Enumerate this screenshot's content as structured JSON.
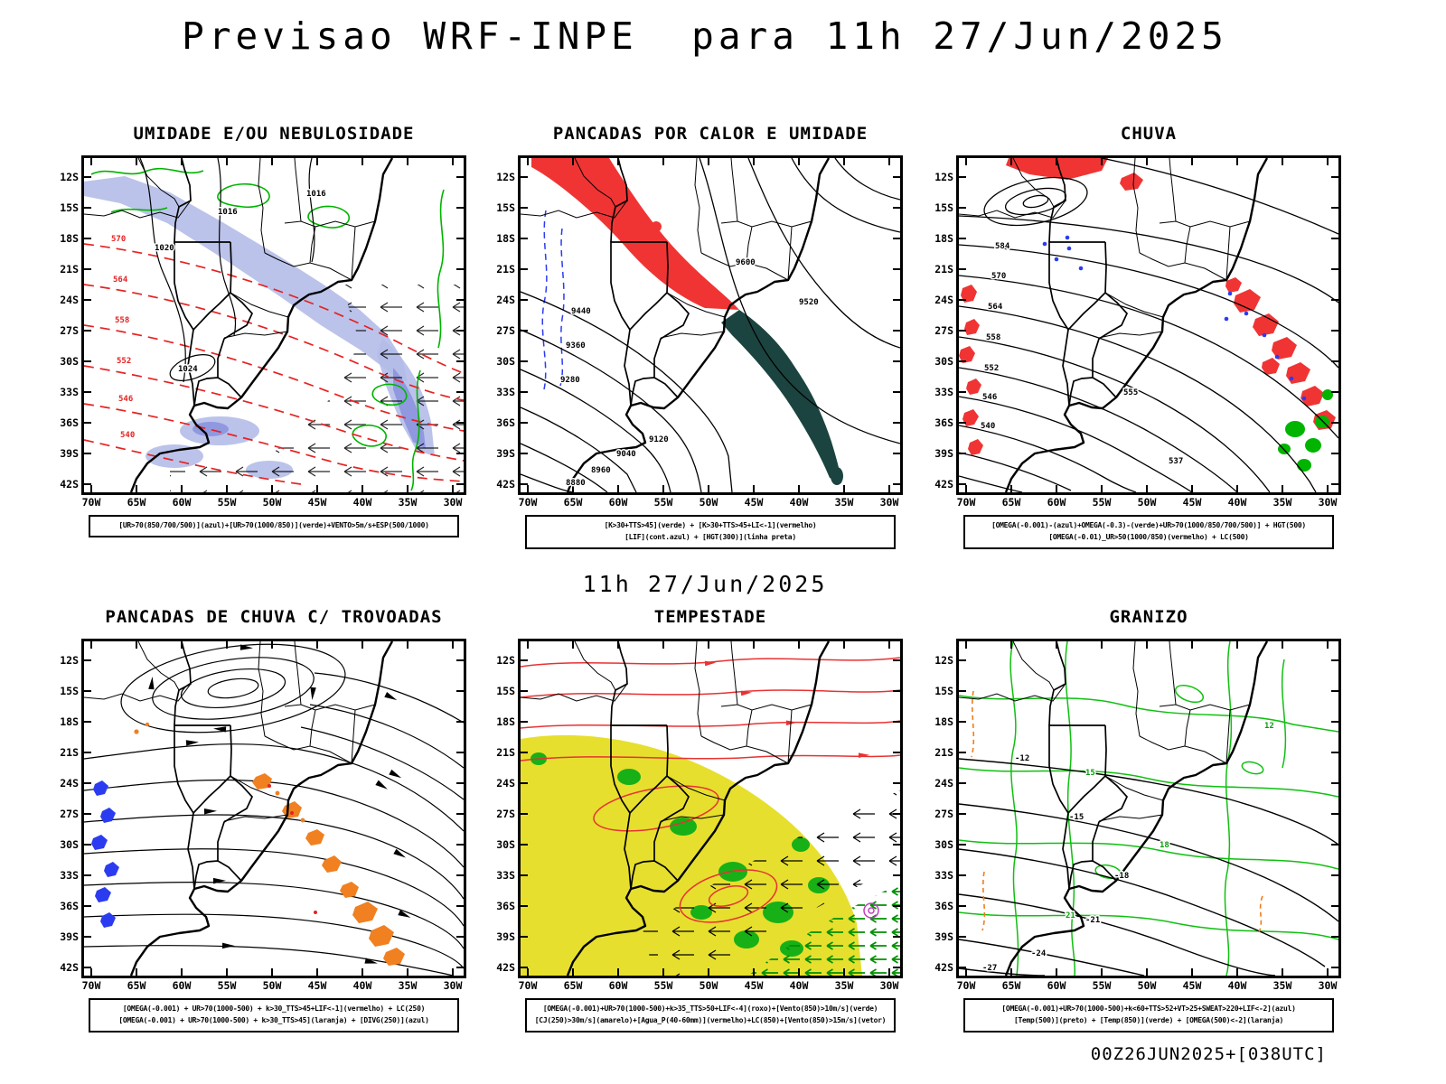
{
  "page": {
    "title": "Previsao WRF-INPE  para 11h 27/Jun/2025",
    "mid_date": "11h 27/Jun/2025",
    "footer": "00Z26JUN2025+[038UTC]"
  },
  "axes": {
    "lat": [
      "12S",
      "15S",
      "18S",
      "21S",
      "24S",
      "27S",
      "30S",
      "33S",
      "36S",
      "39S",
      "42S"
    ],
    "lon": [
      "70W",
      "65W",
      "60W",
      "55W",
      "50W",
      "45W",
      "40W",
      "35W",
      "30W"
    ]
  },
  "colors": {
    "red": "#f03434",
    "dark_teal": "#1b4440",
    "light_blue_shade": "#b4bce8",
    "mid_blue_shade": "#8d96de",
    "blue": "#2b3cf0",
    "green": "#00b400",
    "yellow": "#e6df2e",
    "orange": "#f08020",
    "magenta": "#c23ac2",
    "black": "#000000"
  },
  "panels": [
    {
      "title": "UMIDADE E/OU NEBULOSIDADE",
      "caption_lines": [
        "[UR>70(850/700/500)](azul)+[UR>70(1000/850)](verde)+VENTO>5m/s+ESP(500/1000)"
      ],
      "labels": {
        "pressure": [
          "1016",
          "1020",
          "1024",
          "1016"
        ],
        "thickness": [
          "570",
          "564",
          "558",
          "552",
          "546",
          "540"
        ]
      }
    },
    {
      "title": "PANCADAS POR CALOR E UMIDADE",
      "caption_lines": [
        "[K>30+TTS>45](verde) + [K>30+TTS>45+LI<-1](vermelho)",
        "[LIF](cont.azul) + [HGT(300)](linha preta)"
      ],
      "labels": {
        "hgt300": [
          "9600",
          "9520",
          "9440",
          "9360",
          "9280",
          "9120",
          "9040",
          "8960",
          "8880"
        ]
      }
    },
    {
      "title": "CHUVA",
      "caption_lines": [
        "[OMEGA(-0.001)-(azul)+OMEGA(-0.3)-(verde)+UR>70(1000/850/700/500)] + HGT(500)",
        "[OMEGA(-0.01)_UR>50(1000/850)(vermelho) + LC(500)"
      ],
      "labels": {
        "hgt500": [
          "584",
          "570",
          "564",
          "558",
          "555",
          "552",
          "546",
          "540",
          "537"
        ]
      }
    },
    {
      "title": "PANCADAS DE CHUVA C/ TROVOADAS",
      "caption_lines": [
        "[OMEGA(-0.001) + UR>70(1000-500) + k>30_TTS>45+LIF<-1](vermelho) + LC(250)",
        "[OMEGA(-0.001) + UR>70(1000-500) + k>30_TTS>45](laranja) + [DIVG(250)](azul)"
      ],
      "labels": {}
    },
    {
      "title": "TEMPESTADE",
      "caption_lines": [
        "[OMEGA(-0.001)+UR>70(1000-500)+k>35_TTS>50+LIF<-4](roxo)+[Vento(850)>10m/s](verde)",
        "[CJ(250)>30m/s](amarelo)+[Agua_P(40-60mm)](vermelho)+LC(850)+[Vento(850)>15m/s](vetor)"
      ],
      "labels": {}
    },
    {
      "title": "GRANIZO",
      "caption_lines": [
        "[OMEGA(-0.001)+UR>70(1000-500)+k<60+TTS>52+VT>25+SWEAT>220+LIF<-2](azul)",
        "[Temp(500)](preto) + [Temp(850)](verde) + [OMEGA(500)<-2](laranja)"
      ],
      "labels": {
        "temp500": [
          "-12",
          "-15",
          "-18",
          "-21",
          "-24",
          "-27"
        ],
        "temp850": [
          "12",
          "15",
          "18",
          "21"
        ]
      }
    }
  ]
}
